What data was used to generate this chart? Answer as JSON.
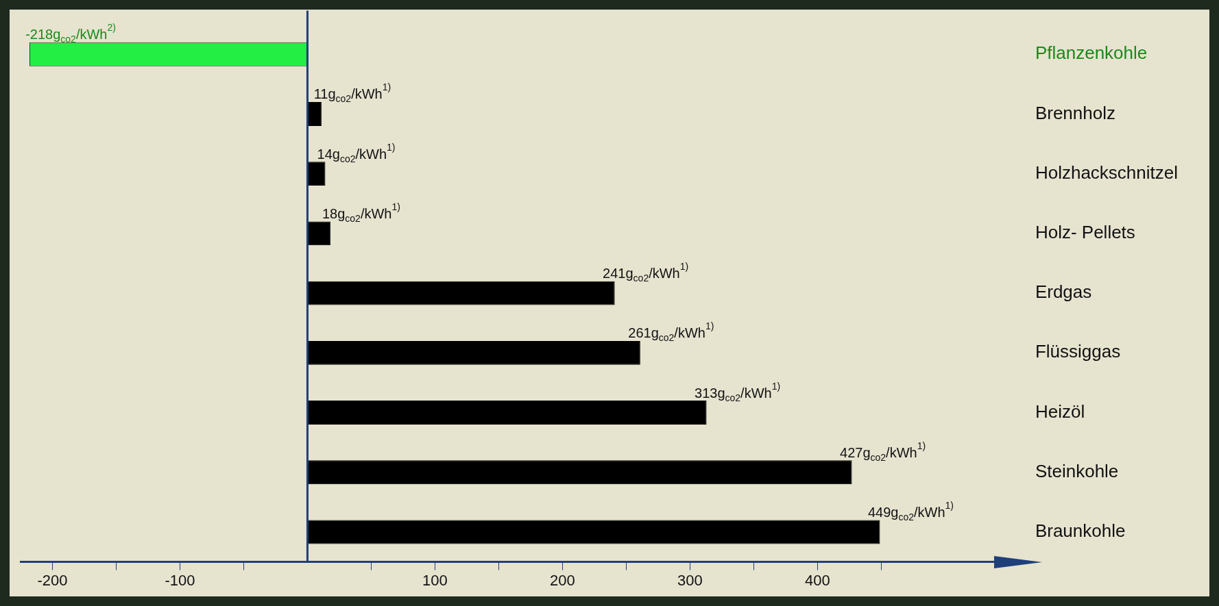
{
  "chart_data": {
    "type": "bar",
    "orientation": "horizontal",
    "categories": [
      "Pflanzenkohle",
      "Brennholz",
      "Holzhackschnitzel",
      "Holz- Pellets",
      "Erdgas",
      "Flüssiggas",
      "Heizöl",
      "Steinkohle",
      "Braunkohle"
    ],
    "values": [
      -218,
      11,
      14,
      18,
      241,
      261,
      313,
      427,
      449
    ],
    "colors": [
      "#22ee44",
      "#000000",
      "#000000",
      "#000000",
      "#000000",
      "#000000",
      "#000000",
      "#000000",
      "#000000"
    ],
    "value_labels": [
      "-218g$_{co2}$/kWh$^{2)}$",
      "11g$_{co2}$/kWh$^{1)}$",
      "14g$_{co2}$/kWh$^{1)}$",
      "18g$_{co2}$/kWh$^{1)}$",
      "241g$_{co2}$/kWh$^{1)}$",
      "261g$_{co2}$/kWh$^{1)}$",
      "313g$_{co2}$/kWh$^{1)}$",
      "427g$_{co2}$/kWh$^{1)}$",
      "449g$_{co2}$/kWh$^{1)}$"
    ],
    "xlim": [
      -225,
      560
    ],
    "xticks": [
      -200,
      {
        "value": -150,
        "label": null
      },
      -100,
      {
        "value": -50,
        "label": null
      },
      {
        "value": 50,
        "label": null
      },
      100,
      {
        "value": 150,
        "label": null
      },
      200,
      {
        "value": 250,
        "label": null
      },
      300,
      {
        "value": 350,
        "label": null
      },
      400,
      {
        "value": 450,
        "label": null
      }
    ],
    "ref_lines": [
      {
        "axis": "x",
        "value": 0,
        "color": "#1f3f7a"
      }
    ],
    "grid": false
  }
}
